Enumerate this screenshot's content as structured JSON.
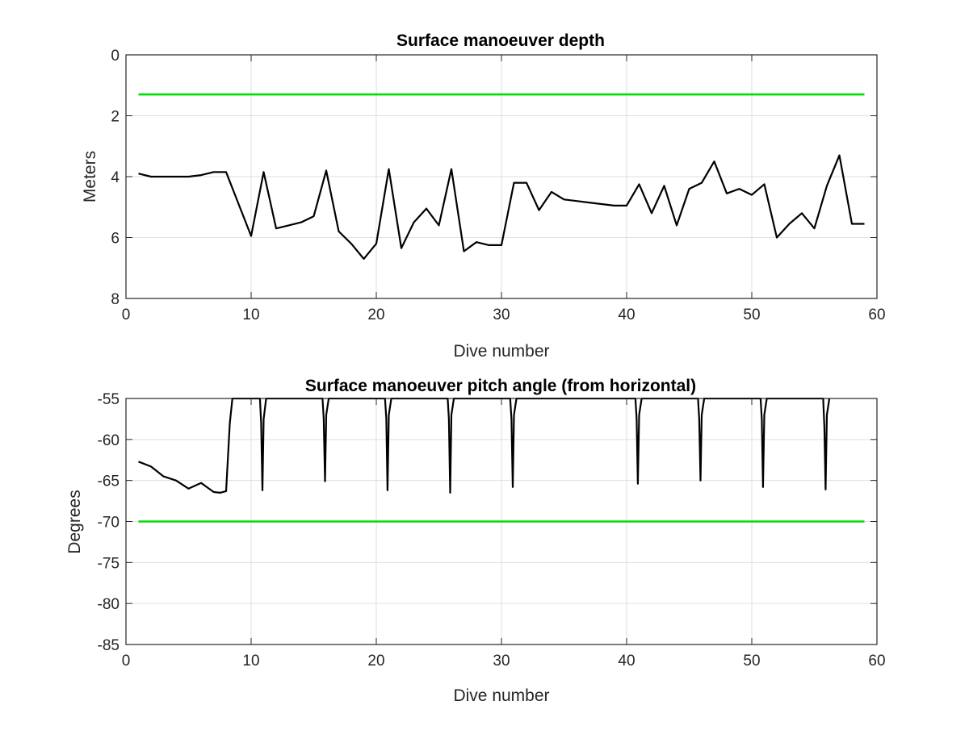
{
  "chart_data": [
    {
      "type": "line",
      "title": "Surface manoeuver depth",
      "xlabel": "Dive number",
      "ylabel": "Meters",
      "xlim": [
        0,
        60
      ],
      "ylim": [
        0,
        8
      ],
      "y_reversed": true,
      "grid": true,
      "xticks": [
        "0",
        "10",
        "20",
        "30",
        "40",
        "50",
        "60"
      ],
      "yticks": [
        "0",
        "2",
        "4",
        "6",
        "8"
      ],
      "colors": {
        "data": "#000000",
        "threshold": "#00dd00"
      },
      "series": [
        {
          "x": [
            1,
            2,
            3,
            4,
            5,
            6,
            7,
            8,
            9,
            10,
            11,
            12,
            13,
            14,
            15,
            16,
            17,
            18,
            19,
            20,
            21,
            22,
            23,
            24,
            25,
            26,
            27,
            28,
            29,
            30,
            31,
            32,
            33,
            34,
            35,
            36,
            37,
            38,
            39,
            40,
            41,
            42,
            43,
            44,
            45,
            46,
            47,
            48,
            49,
            50,
            51,
            52,
            53,
            54,
            55,
            56,
            57,
            58,
            59
          ],
          "y": [
            3.9,
            4.0,
            4.0,
            4.0,
            4.0,
            3.95,
            3.85,
            3.85,
            4.9,
            5.95,
            3.85,
            5.7,
            5.6,
            5.5,
            5.3,
            3.8,
            5.8,
            6.2,
            6.7,
            6.2,
            3.75,
            6.35,
            5.5,
            5.05,
            5.6,
            3.75,
            6.45,
            6.15,
            6.25,
            6.25,
            4.2,
            4.2,
            5.1,
            4.5,
            4.75,
            4.8,
            4.85,
            4.9,
            4.95,
            4.95,
            4.25,
            5.2,
            4.3,
            5.6,
            4.4,
            4.2,
            3.5,
            4.55,
            4.4,
            4.6,
            4.25,
            6.0,
            5.55,
            5.2,
            5.7,
            4.3,
            3.3,
            5.55,
            5.55
          ]
        },
        {
          "x": [
            1,
            59
          ],
          "y": [
            1.3,
            1.3
          ]
        }
      ]
    },
    {
      "type": "line",
      "title": "Surface manoeuver pitch angle (from horizontal)",
      "xlabel": "Dive number",
      "ylabel": "Degrees",
      "xlim": [
        0,
        60
      ],
      "ylim": [
        -85,
        -55
      ],
      "grid": true,
      "xticks": [
        "0",
        "10",
        "20",
        "30",
        "40",
        "50",
        "60"
      ],
      "yticks": [
        "-55",
        "-60",
        "-65",
        "-70",
        "-75",
        "-80",
        "-85"
      ],
      "colors": {
        "data": "#000000",
        "threshold": "#00dd00"
      },
      "series": [
        {
          "x": [
            1,
            2,
            3,
            4,
            5,
            6,
            7,
            7.5,
            8,
            8.3,
            8.5,
            10.7,
            10.8,
            10.9,
            11.0,
            11.2,
            15.7,
            15.8,
            15.9,
            16.0,
            16.2,
            20.7,
            20.8,
            20.9,
            21.0,
            21.2,
            25.7,
            25.8,
            25.9,
            26.0,
            26.2,
            30.7,
            30.8,
            30.9,
            31.0,
            31.2,
            40.7,
            40.8,
            40.9,
            41.0,
            41.2,
            45.7,
            45.8,
            45.9,
            46.0,
            46.2,
            50.7,
            50.8,
            50.9,
            51.0,
            51.2,
            55.7,
            55.8,
            55.9,
            56.0,
            56.2
          ],
          "y": [
            -62.7,
            -63.3,
            -64.5,
            -65.0,
            -66.0,
            -65.3,
            -66.4,
            -66.5,
            -66.3,
            -58.0,
            -55.0,
            -55.0,
            -58.0,
            -66.2,
            -57.5,
            -55.0,
            -55.0,
            -57.5,
            -65.1,
            -57.0,
            -55.0,
            -55.0,
            -57.5,
            -66.2,
            -57.0,
            -55.0,
            -55.0,
            -57.5,
            -66.5,
            -57.0,
            -55.0,
            -55.0,
            -57.5,
            -65.8,
            -57.0,
            -55.0,
            -55.0,
            -57.5,
            -65.4,
            -57.0,
            -55.0,
            -55.0,
            -57.5,
            -65.0,
            -57.0,
            -55.0,
            -55.0,
            -57.5,
            -65.8,
            -57.0,
            -55.0,
            -55.0,
            -58.5,
            -66.1,
            -57.0,
            -55.0
          ]
        },
        {
          "x": [
            1,
            59
          ],
          "y": [
            -70,
            -70
          ]
        }
      ]
    }
  ]
}
